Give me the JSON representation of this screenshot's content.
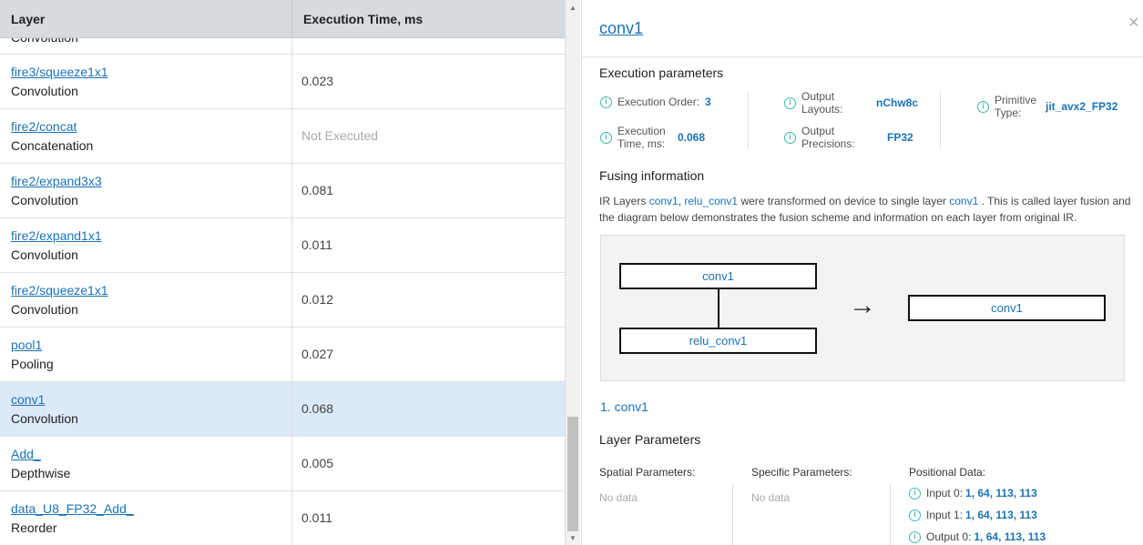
{
  "table": {
    "headers": [
      "Layer",
      "Execution Time, ms"
    ],
    "partial_row_type": "Convolution",
    "rows": [
      {
        "name": "fire3/squeeze1x1",
        "type": "Convolution",
        "time": "0.023"
      },
      {
        "name": "fire2/concat",
        "type": "Concatenation",
        "time": "Not Executed"
      },
      {
        "name": "fire2/expand3x3",
        "type": "Convolution",
        "time": "0.081"
      },
      {
        "name": "fire2/expand1x1",
        "type": "Convolution",
        "time": "0.011"
      },
      {
        "name": "fire2/squeeze1x1",
        "type": "Convolution",
        "time": "0.012"
      },
      {
        "name": "pool1",
        "type": "Pooling",
        "time": "0.027"
      },
      {
        "name": "conv1",
        "type": "Convolution",
        "time": "0.068",
        "selected": true
      },
      {
        "name": "Add_",
        "type": "Depthwise",
        "time": "0.005"
      },
      {
        "name": "data_U8_FP32_Add_",
        "type": "Reorder",
        "time": "0.011"
      }
    ]
  },
  "panel": {
    "title": "conv1",
    "close": "×",
    "exec_title": "Execution parameters",
    "exec_order_label": "Execution Order:",
    "exec_order": "3",
    "exec_time_label": "Execution Time, ms:",
    "exec_time": "0.068",
    "out_layouts_label": "Output Layouts:",
    "out_layouts": "nChw8c",
    "out_prec_label": "Output Precisions:",
    "out_prec": "FP32",
    "prim_label": "Primitive Type:",
    "prim": "jit_avx2_FP32",
    "fusing_title": "Fusing information",
    "fusing_desc": {
      "a": "IR Layers ",
      "l1": "conv1",
      "b": ", ",
      "l2": "relu_conv1",
      "c": " were transformed on device to single layer ",
      "l3": "conv1",
      "d": " . This is called layer fusion and the diagram below demonstrates the fusion scheme and information on each layer from original IR."
    },
    "diagram": {
      "before": [
        "conv1",
        "relu_conv1"
      ],
      "arrow": "→",
      "after": "conv1"
    },
    "layer_heading": "1. conv1",
    "layer_params_title": "Layer Parameters",
    "spatial_label": "Spatial Parameters:",
    "spatial": "No data",
    "specific_label": "Specific Parameters:",
    "specific": "No data",
    "positional_label": "Positional Data:",
    "positional": [
      {
        "label": "Input 0:",
        "value": "1, 64, 113, 113"
      },
      {
        "label": "Input 1:",
        "value": "1, 64, 113, 113"
      },
      {
        "label": "Output 0:",
        "value": "1, 64, 113, 113"
      }
    ]
  },
  "colors": {
    "accent": "#1a73b8",
    "info": "#3bb8b0",
    "selected_row": "#dce9f8",
    "header": "#d5dbde"
  }
}
